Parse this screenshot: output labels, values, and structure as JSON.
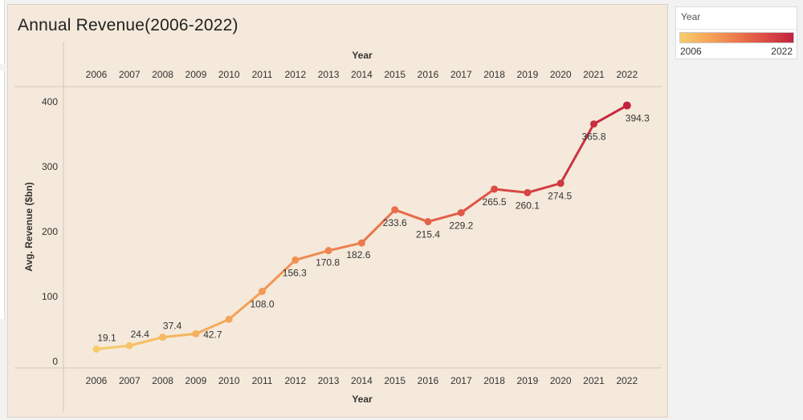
{
  "legend": {
    "title": "Year",
    "min_label": "2006",
    "max_label": "2022",
    "color_start": "#f6cd6a",
    "color_end": "#c2233f"
  },
  "chart_data": {
    "type": "line",
    "title": "Annual Revenue(2006-2022)",
    "xlabel": "Year",
    "ylabel": "Avg. Revenue ($bn)",
    "x": [
      "2006",
      "2007",
      "2008",
      "2009",
      "2010",
      "2011",
      "2012",
      "2013",
      "2014",
      "2015",
      "2016",
      "2017",
      "2018",
      "2019",
      "2020",
      "2021",
      "2022"
    ],
    "series": [
      {
        "values": [
          19.1,
          24.4,
          37.4,
          42.7,
          65,
          108.0,
          156.3,
          170.8,
          182.6,
          233.6,
          215.4,
          229.2,
          265.5,
          260.1,
          274.5,
          365.8,
          394.3
        ],
        "labels": [
          "19.1",
          "24.4",
          "37.4",
          "42.7",
          "",
          "108.0",
          "156.3",
          "170.8",
          "182.6",
          "233.6",
          "215.4",
          "229.2",
          "265.5",
          "260.1",
          "274.5",
          "365.8",
          "394.3"
        ]
      }
    ],
    "yticks": [
      0,
      100,
      200,
      300,
      400
    ],
    "ylim": [
      0,
      400
    ],
    "x_axis_positions": [
      "top",
      "bottom"
    ],
    "color_gradient": [
      "#f6cd6a",
      "#f5a55a",
      "#ec7a4c",
      "#dc4d45",
      "#c2233f"
    ],
    "grid": false
  }
}
